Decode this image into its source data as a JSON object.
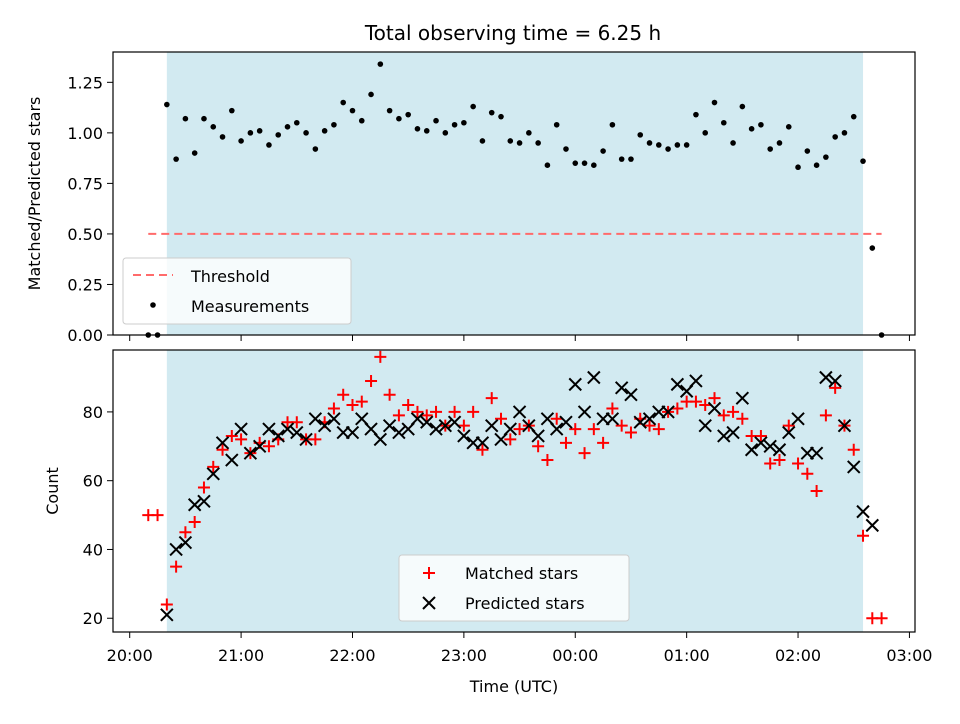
{
  "title": "Total observing time = 6.25 h",
  "colors": {
    "shade": "#add8e6",
    "threshold": "#ff6b6b",
    "matched": "#ff0000",
    "predicted": "#000000",
    "measurements": "#000000"
  },
  "chart_data": [
    {
      "type": "scatter",
      "ylabel": "Matched/Predicted stars",
      "xlabel": "",
      "ylim": [
        0,
        1.4
      ],
      "xlim_hours_utc_from_2000": [
        -0.15,
        7.05
      ],
      "y_ticks": [
        "0.00",
        "0.25",
        "0.50",
        "0.75",
        "1.00",
        "1.25"
      ],
      "grid": false,
      "legend_placement": "lower-left",
      "observing_window": [
        "20:20",
        "02:35"
      ],
      "threshold": {
        "name": "Threshold",
        "value": 0.5,
        "x_from": "20:10",
        "x_to": "02:45"
      },
      "series": [
        {
          "name": "Measurements",
          "points": [
            [
              "20:10",
              0.0
            ],
            [
              "20:15",
              0.0
            ],
            [
              "20:20",
              1.14
            ],
            [
              "20:25",
              0.87
            ],
            [
              "20:30",
              1.07
            ],
            [
              "20:35",
              0.9
            ],
            [
              "20:40",
              1.07
            ],
            [
              "20:45",
              1.03
            ],
            [
              "20:50",
              0.98
            ],
            [
              "20:55",
              1.11
            ],
            [
              "21:00",
              0.96
            ],
            [
              "21:05",
              1.0
            ],
            [
              "21:10",
              1.01
            ],
            [
              "21:15",
              0.94
            ],
            [
              "21:20",
              0.99
            ],
            [
              "21:25",
              1.03
            ],
            [
              "21:30",
              1.05
            ],
            [
              "21:35",
              1.0
            ],
            [
              "21:40",
              0.92
            ],
            [
              "21:45",
              1.01
            ],
            [
              "21:50",
              1.04
            ],
            [
              "21:55",
              1.15
            ],
            [
              "22:00",
              1.11
            ],
            [
              "22:05",
              1.06
            ],
            [
              "22:10",
              1.19
            ],
            [
              "22:15",
              1.34
            ],
            [
              "22:20",
              1.11
            ],
            [
              "22:25",
              1.07
            ],
            [
              "22:30",
              1.09
            ],
            [
              "22:35",
              1.02
            ],
            [
              "22:40",
              1.01
            ],
            [
              "22:45",
              1.06
            ],
            [
              "22:50",
              1.0
            ],
            [
              "22:55",
              1.04
            ],
            [
              "23:00",
              1.05
            ],
            [
              "23:05",
              1.13
            ],
            [
              "23:10",
              0.96
            ],
            [
              "23:15",
              1.1
            ],
            [
              "23:20",
              1.08
            ],
            [
              "23:25",
              0.96
            ],
            [
              "23:30",
              0.95
            ],
            [
              "23:35",
              1.0
            ],
            [
              "23:40",
              0.95
            ],
            [
              "23:45",
              0.84
            ],
            [
              "23:50",
              1.04
            ],
            [
              "23:55",
              0.92
            ],
            [
              "00:00",
              0.85
            ],
            [
              "00:05",
              0.85
            ],
            [
              "00:10",
              0.84
            ],
            [
              "00:15",
              0.91
            ],
            [
              "00:20",
              1.04
            ],
            [
              "00:25",
              0.87
            ],
            [
              "00:30",
              0.87
            ],
            [
              "00:35",
              0.99
            ],
            [
              "00:40",
              0.95
            ],
            [
              "00:45",
              0.94
            ],
            [
              "00:50",
              0.92
            ],
            [
              "00:55",
              0.94
            ],
            [
              "01:00",
              0.94
            ],
            [
              "01:05",
              1.09
            ],
            [
              "01:10",
              1.0
            ],
            [
              "01:15",
              1.15
            ],
            [
              "01:20",
              1.05
            ],
            [
              "01:25",
              0.95
            ],
            [
              "01:30",
              1.13
            ],
            [
              "01:35",
              1.02
            ],
            [
              "01:40",
              1.04
            ],
            [
              "01:45",
              0.92
            ],
            [
              "01:50",
              0.95
            ],
            [
              "01:55",
              1.03
            ],
            [
              "02:00",
              0.83
            ],
            [
              "02:05",
              0.91
            ],
            [
              "02:10",
              0.84
            ],
            [
              "02:15",
              0.88
            ],
            [
              "02:20",
              0.98
            ],
            [
              "02:25",
              1.0
            ],
            [
              "02:30",
              1.08
            ],
            [
              "02:35",
              0.86
            ],
            [
              "02:40",
              0.43
            ],
            [
              "02:45",
              0.0
            ]
          ]
        }
      ]
    },
    {
      "type": "scatter",
      "ylabel": "Count",
      "xlabel": "Time (UTC)",
      "ylim": [
        16,
        98
      ],
      "y_ticks": [
        "20",
        "40",
        "60",
        "80"
      ],
      "x_ticks": [
        "20:00",
        "21:00",
        "22:00",
        "23:00",
        "00:00",
        "01:00",
        "02:00",
        "03:00"
      ],
      "grid": false,
      "legend_placement": "lower-center",
      "series": [
        {
          "name": "Matched stars",
          "marker": "+",
          "points": [
            [
              "20:10",
              50
            ],
            [
              "20:15",
              50
            ],
            [
              "20:20",
              24
            ],
            [
              "20:25",
              35
            ],
            [
              "20:30",
              45
            ],
            [
              "20:35",
              48
            ],
            [
              "20:40",
              58
            ],
            [
              "20:45",
              64
            ],
            [
              "20:50",
              69
            ],
            [
              "20:55",
              73
            ],
            [
              "21:00",
              72
            ],
            [
              "21:05",
              68
            ],
            [
              "21:10",
              71
            ],
            [
              "21:15",
              70
            ],
            [
              "21:20",
              72
            ],
            [
              "21:25",
              77
            ],
            [
              "21:30",
              77
            ],
            [
              "21:35",
              72
            ],
            [
              "21:40",
              72
            ],
            [
              "21:45",
              77
            ],
            [
              "21:50",
              81
            ],
            [
              "21:55",
              85
            ],
            [
              "22:00",
              82
            ],
            [
              "22:05",
              83
            ],
            [
              "22:10",
              89
            ],
            [
              "22:15",
              96
            ],
            [
              "22:20",
              85
            ],
            [
              "22:25",
              79
            ],
            [
              "22:30",
              82
            ],
            [
              "22:35",
              80
            ],
            [
              "22:40",
              79
            ],
            [
              "22:45",
              80
            ],
            [
              "22:50",
              76
            ],
            [
              "22:55",
              80
            ],
            [
              "23:00",
              76
            ],
            [
              "23:05",
              80
            ],
            [
              "23:10",
              69
            ],
            [
              "23:15",
              84
            ],
            [
              "23:20",
              78
            ],
            [
              "23:25",
              72
            ],
            [
              "23:30",
              75
            ],
            [
              "23:35",
              76
            ],
            [
              "23:40",
              70
            ],
            [
              "23:45",
              66
            ],
            [
              "23:50",
              78
            ],
            [
              "23:55",
              71
            ],
            [
              "00:00",
              75
            ],
            [
              "00:05",
              68
            ],
            [
              "00:10",
              75
            ],
            [
              "00:15",
              71
            ],
            [
              "00:20",
              81
            ],
            [
              "00:25",
              76
            ],
            [
              "00:30",
              74
            ],
            [
              "00:35",
              78
            ],
            [
              "00:40",
              76
            ],
            [
              "00:45",
              75
            ],
            [
              "00:50",
              80
            ],
            [
              "00:55",
              81
            ],
            [
              "01:00",
              83
            ],
            [
              "01:05",
              83
            ],
            [
              "01:10",
              82
            ],
            [
              "01:15",
              84
            ],
            [
              "01:20",
              79
            ],
            [
              "01:25",
              80
            ],
            [
              "01:30",
              78
            ],
            [
              "01:35",
              73
            ],
            [
              "01:40",
              73
            ],
            [
              "01:45",
              65
            ],
            [
              "01:50",
              66
            ],
            [
              "01:55",
              76
            ],
            [
              "02:00",
              65
            ],
            [
              "02:05",
              62
            ],
            [
              "02:10",
              57
            ],
            [
              "02:15",
              79
            ],
            [
              "02:20",
              87
            ],
            [
              "02:25",
              76
            ],
            [
              "02:30",
              69
            ],
            [
              "02:35",
              44
            ],
            [
              "02:40",
              20
            ],
            [
              "02:45",
              20
            ]
          ]
        },
        {
          "name": "Predicted stars",
          "marker": "x",
          "points": [
            [
              "20:20",
              21
            ],
            [
              "20:25",
              40
            ],
            [
              "20:30",
              42
            ],
            [
              "20:35",
              53
            ],
            [
              "20:40",
              54
            ],
            [
              "20:45",
              62
            ],
            [
              "20:50",
              71
            ],
            [
              "20:55",
              66
            ],
            [
              "21:00",
              75
            ],
            [
              "21:05",
              68
            ],
            [
              "21:10",
              70
            ],
            [
              "21:15",
              75
            ],
            [
              "21:20",
              73
            ],
            [
              "21:25",
              75
            ],
            [
              "21:30",
              74
            ],
            [
              "21:35",
              72
            ],
            [
              "21:40",
              78
            ],
            [
              "21:45",
              76
            ],
            [
              "21:50",
              78
            ],
            [
              "21:55",
              74
            ],
            [
              "22:00",
              74
            ],
            [
              "22:05",
              78
            ],
            [
              "22:10",
              75
            ],
            [
              "22:15",
              72
            ],
            [
              "22:20",
              76
            ],
            [
              "22:25",
              74
            ],
            [
              "22:30",
              75
            ],
            [
              "22:35",
              78
            ],
            [
              "22:40",
              77
            ],
            [
              "22:45",
              75
            ],
            [
              "22:50",
              76
            ],
            [
              "22:55",
              77
            ],
            [
              "23:00",
              73
            ],
            [
              "23:05",
              71
            ],
            [
              "23:10",
              71
            ],
            [
              "23:15",
              76
            ],
            [
              "23:20",
              72
            ],
            [
              "23:25",
              75
            ],
            [
              "23:30",
              80
            ],
            [
              "23:35",
              76
            ],
            [
              "23:40",
              73
            ],
            [
              "23:45",
              78
            ],
            [
              "23:50",
              75
            ],
            [
              "23:55",
              77
            ],
            [
              "00:00",
              88
            ],
            [
              "00:05",
              80
            ],
            [
              "00:10",
              90
            ],
            [
              "00:15",
              78
            ],
            [
              "00:20",
              78
            ],
            [
              "00:25",
              87
            ],
            [
              "00:30",
              85
            ],
            [
              "00:35",
              77
            ],
            [
              "00:40",
              78
            ],
            [
              "00:45",
              80
            ],
            [
              "00:50",
              80
            ],
            [
              "00:55",
              88
            ],
            [
              "01:00",
              86
            ],
            [
              "01:05",
              89
            ],
            [
              "01:10",
              76
            ],
            [
              "01:15",
              81
            ],
            [
              "01:20",
              73
            ],
            [
              "01:25",
              74
            ],
            [
              "01:30",
              84
            ],
            [
              "01:35",
              69
            ],
            [
              "01:40",
              71
            ],
            [
              "01:45",
              70
            ],
            [
              "01:50",
              69
            ],
            [
              "01:55",
              74
            ],
            [
              "02:00",
              78
            ],
            [
              "02:05",
              68
            ],
            [
              "02:10",
              68
            ],
            [
              "02:15",
              90
            ],
            [
              "02:20",
              89
            ],
            [
              "02:25",
              76
            ],
            [
              "02:30",
              64
            ],
            [
              "02:35",
              51
            ],
            [
              "02:40",
              47
            ]
          ]
        }
      ]
    }
  ]
}
